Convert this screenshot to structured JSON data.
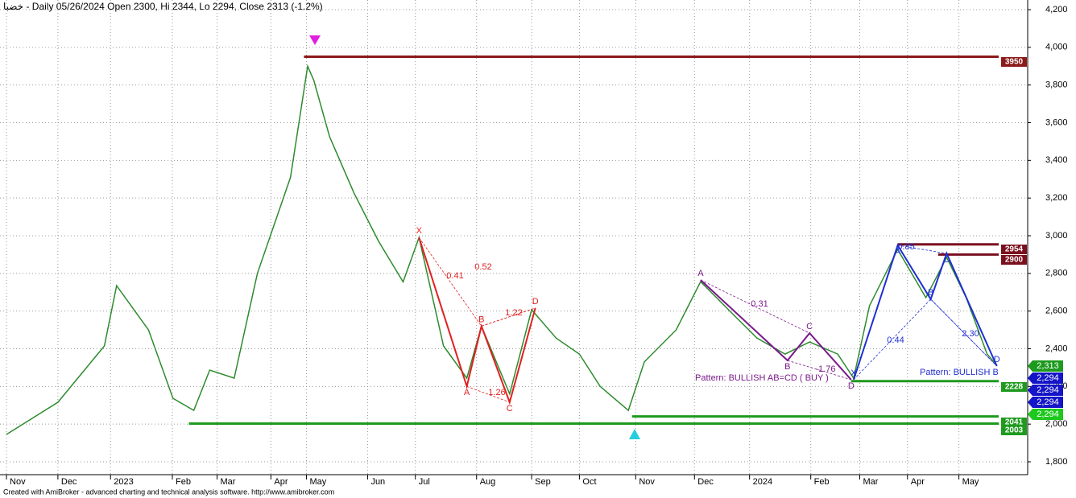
{
  "chart_data": {
    "type": "line",
    "title": "خضبا - Daily 05/26/2024 Open 2300, Hi 2344, Lo 2294, Close 2313 (-1.2%)",
    "footer": "Created with AmiBroker - advanced charting and technical analysis software. http://www.amibroker.com",
    "color": "#2e8b2e",
    "x": [
      0.2,
      4.4,
      8.2,
      9.2,
      11.8,
      13.8,
      15.5,
      16.8,
      18.8,
      20.7,
      23.4,
      24.8,
      25.3,
      26.6,
      28.6,
      30.6,
      32.6,
      33.9,
      35.9,
      37.8,
      39,
      41.3,
      43.1,
      45.1,
      47,
      48.7,
      51,
      52.3,
      54.9,
      56.9,
      59.5,
      61.5,
      63.8,
      65.8,
      68.1,
      69.4,
      70.7,
      73,
      75.3,
      77,
      78.6,
      80.3,
      81.1
    ],
    "values": [
      1945,
      2116,
      2415,
      2735,
      2500,
      2137,
      2073,
      2287,
      2244,
      2800,
      3310,
      3900,
      3825,
      3525,
      3225,
      2970,
      2755,
      2990,
      2415,
      2244,
      2520,
      2160,
      2607,
      2457,
      2372,
      2200,
      2073,
      2330,
      2500,
      2756,
      2586,
      2457,
      2372,
      2436,
      2372,
      2244,
      2628,
      2927,
      2671,
      2885,
      2671,
      2372,
      2313
    ],
    "xlim": [
      0,
      83.5
    ],
    "ylim": [
      1800,
      4200
    ],
    "xticks": [
      {
        "value": 0.2,
        "label": "Nov"
      },
      {
        "value": 4.4,
        "label": "Dec"
      },
      {
        "value": 8.7,
        "label": "2023"
      },
      {
        "value": 13.75,
        "label": "Feb"
      },
      {
        "value": 17.4,
        "label": "Mar"
      },
      {
        "value": 21.8,
        "label": "Apr"
      },
      {
        "value": 24.7,
        "label": "May"
      },
      {
        "value": 29.7,
        "label": "Jun"
      },
      {
        "value": 33.6,
        "label": "Jul"
      },
      {
        "value": 38.6,
        "label": "Aug"
      },
      {
        "value": 43.1,
        "label": "Sep"
      },
      {
        "value": 47,
        "label": "Oct"
      },
      {
        "value": 51.6,
        "label": "Nov"
      },
      {
        "value": 56.4,
        "label": "Dec"
      },
      {
        "value": 60.9,
        "label": "2024"
      },
      {
        "value": 65.9,
        "label": "Feb"
      },
      {
        "value": 69.9,
        "label": "Mar"
      },
      {
        "value": 73.8,
        "label": "Apr"
      },
      {
        "value": 78,
        "label": "May"
      }
    ],
    "yticks": [
      {
        "value": 1800,
        "label": "1,800"
      },
      {
        "value": 2000,
        "label": "2,000"
      },
      {
        "value": 2200,
        "label": "2,200"
      },
      {
        "value": 2400,
        "label": "2,400"
      },
      {
        "value": 2600,
        "label": "2,600"
      },
      {
        "value": 2800,
        "label": "2,800"
      },
      {
        "value": 3000,
        "label": "3,000"
      },
      {
        "value": 3200,
        "label": "3,200"
      },
      {
        "value": 3400,
        "label": "3,400"
      },
      {
        "value": 3600,
        "label": "3,600"
      },
      {
        "value": 3800,
        "label": "3,800"
      },
      {
        "value": 4000,
        "label": "4,000"
      },
      {
        "value": 4200,
        "label": "4,200"
      }
    ],
    "grid": true,
    "levels": [
      {
        "value": 3950,
        "start": 24.5,
        "color": "#8b1a1a"
      },
      {
        "value": 2954,
        "start": 73,
        "color": "#7a0f1e"
      },
      {
        "value": 2900,
        "start": 76.3,
        "color": "#7a0f1e"
      },
      {
        "value": 2228,
        "start": 69.2,
        "color": "#1e9a1e"
      },
      {
        "value": 2041,
        "start": 51.3,
        "color": "#1e9a1e"
      },
      {
        "value": 2003,
        "start": 15.1,
        "color": "#1e9a1e"
      }
    ],
    "price_labels": [
      {
        "value": 2313,
        "label": "2,313",
        "color": "#1e9a1e"
      },
      {
        "value": 2294,
        "label": "2,294",
        "color": "#1414c8"
      },
      {
        "value": 2294,
        "label": "2,294",
        "color": "#1414c8"
      },
      {
        "value": 2294,
        "label": "2,294",
        "color": "#1414c8"
      },
      {
        "value": 2294,
        "label": "2,294",
        "color": "#1ec81e"
      }
    ],
    "patterns": [
      {
        "color": "#e02020",
        "x": [
          33.9,
          37.8,
          39,
          41.3,
          43.4
        ],
        "values": [
          2990,
          2200,
          2520,
          2116,
          2616
        ],
        "points": [
          "X",
          "A",
          "B",
          "C",
          "D"
        ],
        "ratios": [
          0.52,
          0.41,
          1.22,
          1.26
        ]
      },
      {
        "color": "#7a1a8a",
        "x": [
          56.9,
          64,
          65.8,
          69.2
        ],
        "values": [
          2765,
          2338,
          2483,
          2236
        ],
        "points": [
          "A",
          "B",
          "C",
          "D"
        ],
        "ratios": [
          0.31,
          -1.76
        ],
        "text": "Pattern: BULLISH AB=CD ( BUY )"
      },
      {
        "color": "#2030d0",
        "x": [
          69.4,
          73,
          75.7,
          77,
          81.1
        ],
        "values": [
          2236,
          2949,
          2663,
          2906,
          2308
        ],
        "points": [
          "X",
          "A",
          "B",
          "C",
          "D"
        ],
        "ratios": [
          0.85,
          0.44,
          {
            "value": 2.3,
            "label": "2.30"
          }
        ],
        "text": "Pattern: BULLISH B"
      }
    ]
  }
}
